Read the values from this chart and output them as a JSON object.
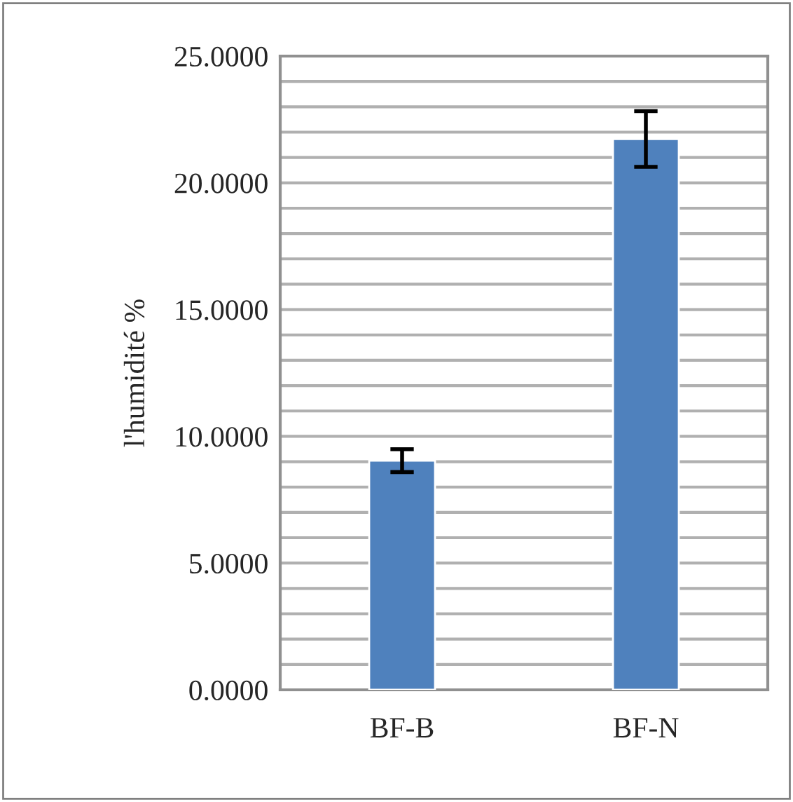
{
  "chart_data": {
    "type": "bar",
    "ylabel": "l'humidité %",
    "categories": [
      "BF-B",
      "BF-N"
    ],
    "values": [
      9.04,
      21.73
    ],
    "errors": [
      0.45,
      1.1
    ],
    "color": "#4f81bd",
    "ylim": [
      0,
      25
    ],
    "yticks": [
      {
        "value": 0,
        "label": "0.0000"
      },
      {
        "value": 1,
        "label": null
      },
      {
        "value": 2,
        "label": null
      },
      {
        "value": 3,
        "label": null
      },
      {
        "value": 4,
        "label": null
      },
      {
        "value": 5,
        "label": "5.0000"
      },
      {
        "value": 6,
        "label": null
      },
      {
        "value": 7,
        "label": null
      },
      {
        "value": 8,
        "label": null
      },
      {
        "value": 9,
        "label": null
      },
      {
        "value": 10,
        "label": "10.0000"
      },
      {
        "value": 11,
        "label": null
      },
      {
        "value": 12,
        "label": null
      },
      {
        "value": 13,
        "label": null
      },
      {
        "value": 14,
        "label": null
      },
      {
        "value": 15,
        "label": "15.0000"
      },
      {
        "value": 16,
        "label": null
      },
      {
        "value": 17,
        "label": null
      },
      {
        "value": 18,
        "label": null
      },
      {
        "value": 19,
        "label": null
      },
      {
        "value": 20,
        "label": "20.0000"
      },
      {
        "value": 21,
        "label": null
      },
      {
        "value": 22,
        "label": null
      },
      {
        "value": 23,
        "label": null
      },
      {
        "value": 24,
        "label": null
      },
      {
        "value": 25,
        "label": "25.0000"
      }
    ],
    "grid": "y"
  }
}
